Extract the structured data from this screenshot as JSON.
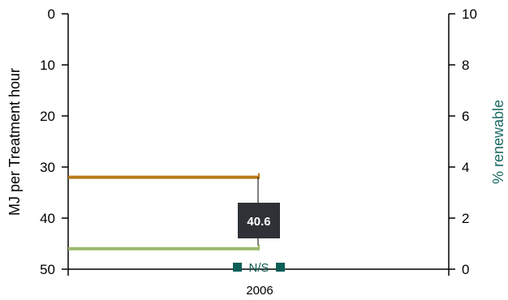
{
  "chart_data": {
    "type": "line",
    "categories": [
      "2006"
    ],
    "left_axis": {
      "label": "MJ per Treatment hour",
      "range": [
        0,
        50
      ],
      "reversed": true,
      "ticks": [
        0,
        10,
        20,
        30,
        40,
        50
      ]
    },
    "right_axis": {
      "label": "% renewable",
      "range": [
        0,
        10
      ],
      "ticks": [
        0,
        2,
        4,
        6,
        8,
        10
      ],
      "color": "#1a6b63"
    },
    "series": [
      {
        "axis": "left",
        "values": [
          32
        ],
        "color": "#b87a1c"
      },
      {
        "axis": "left",
        "values": [
          46
        ],
        "color": "#9bb86a"
      }
    ],
    "data_label": {
      "text": "40.6",
      "value": 40.6
    },
    "ns_marker": {
      "text": "N/S",
      "color": "#0d5e58"
    },
    "grid": false,
    "legend": "none"
  }
}
